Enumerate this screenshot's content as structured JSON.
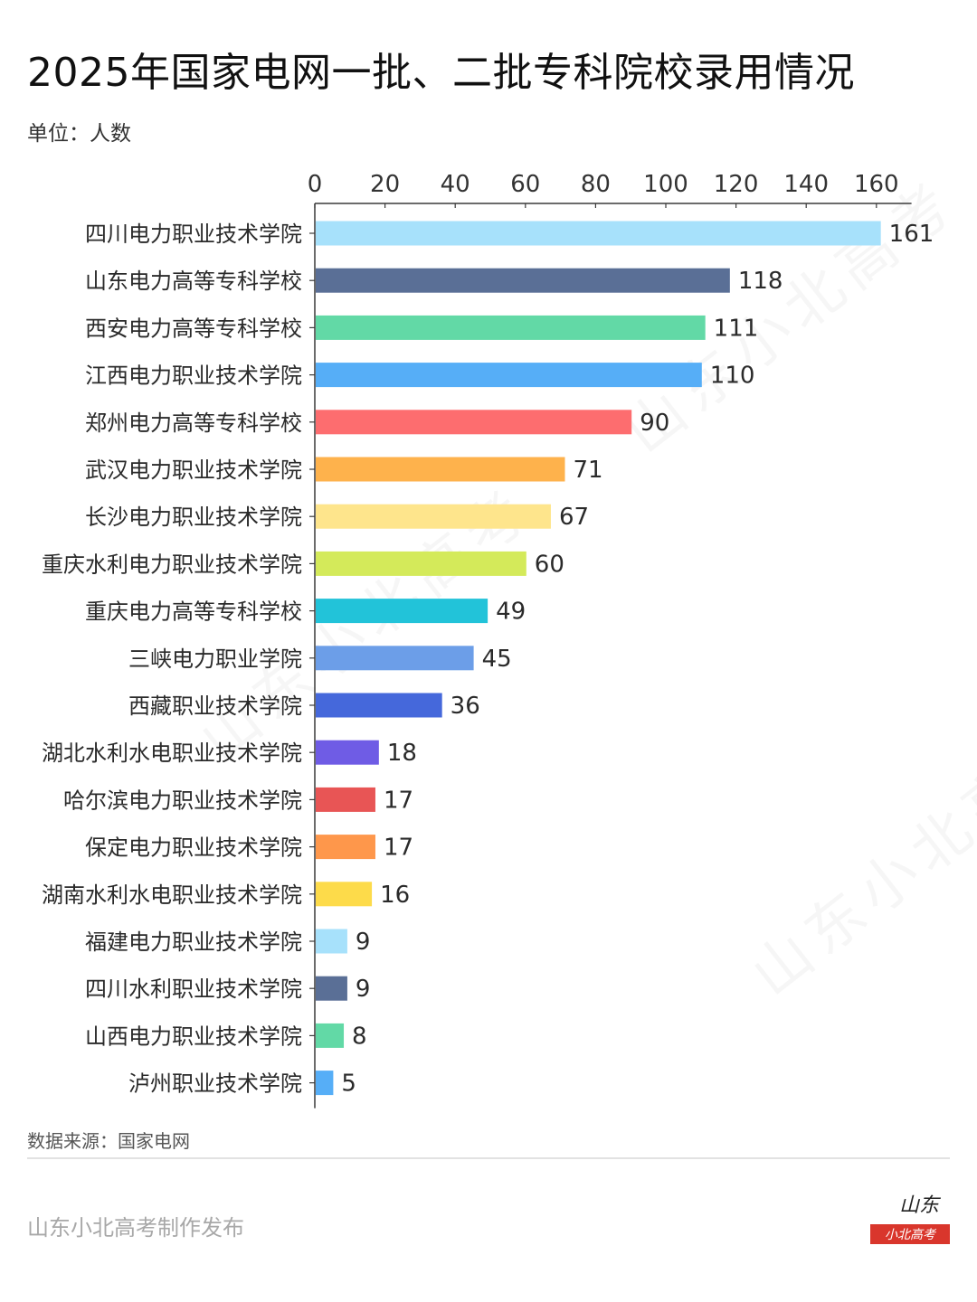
{
  "header": {
    "title": "2025年国家电网一批、二批专科院校录用情况",
    "unit": "单位：人数"
  },
  "chart_data": {
    "type": "bar",
    "orientation": "horizontal",
    "title": "2025年国家电网一批、二批专科院校录用情况",
    "xlabel": "",
    "ylabel": "",
    "xlim": [
      0,
      160
    ],
    "x_ticks": [
      0,
      20,
      40,
      60,
      80,
      100,
      120,
      140,
      160
    ],
    "axis_position": "top",
    "grid": false,
    "data_labels": true,
    "categories": [
      "四川电力职业技术学院",
      "山东电力高等专科学校",
      "西安电力高等专科学校",
      "江西电力职业技术学院",
      "郑州电力高等专科学校",
      "武汉电力职业技术学院",
      "长沙电力职业技术学院",
      "重庆水利电力职业技术学院",
      "重庆电力高等专科学校",
      "三峡电力职业学院",
      "西藏职业技术学院",
      "湖北水利水电职业技术学院",
      "哈尔滨电力职业技术学院",
      "保定电力职业技术学院",
      "湖南水利水电职业技术学院",
      "福建电力职业技术学院",
      "四川水利职业技术学院",
      "山西电力职业技术学院",
      "泸州职业技术学院"
    ],
    "values": [
      161,
      118,
      111,
      110,
      90,
      71,
      67,
      60,
      49,
      45,
      36,
      18,
      17,
      17,
      16,
      9,
      9,
      8,
      5
    ],
    "colors": [
      "#a7e1fb",
      "#5a6f96",
      "#62d9a6",
      "#56aef7",
      "#fd6d6f",
      "#feb24c",
      "#fee58c",
      "#d4ea5a",
      "#22c3d9",
      "#6c9ee8",
      "#4568db",
      "#6f5ce5",
      "#e85555",
      "#fe974b",
      "#fddb4a",
      "#a7e1fb",
      "#5a6f96",
      "#62d9a6",
      "#56aef7"
    ]
  },
  "footer": {
    "source": "数据来源：国家电网",
    "publisher": "山东小北高考制作发布"
  },
  "logo": {
    "top_text": "山东",
    "bottom_text": "小北高考",
    "color": "#d9362c"
  },
  "watermark": {
    "text": "山东小北高考"
  }
}
